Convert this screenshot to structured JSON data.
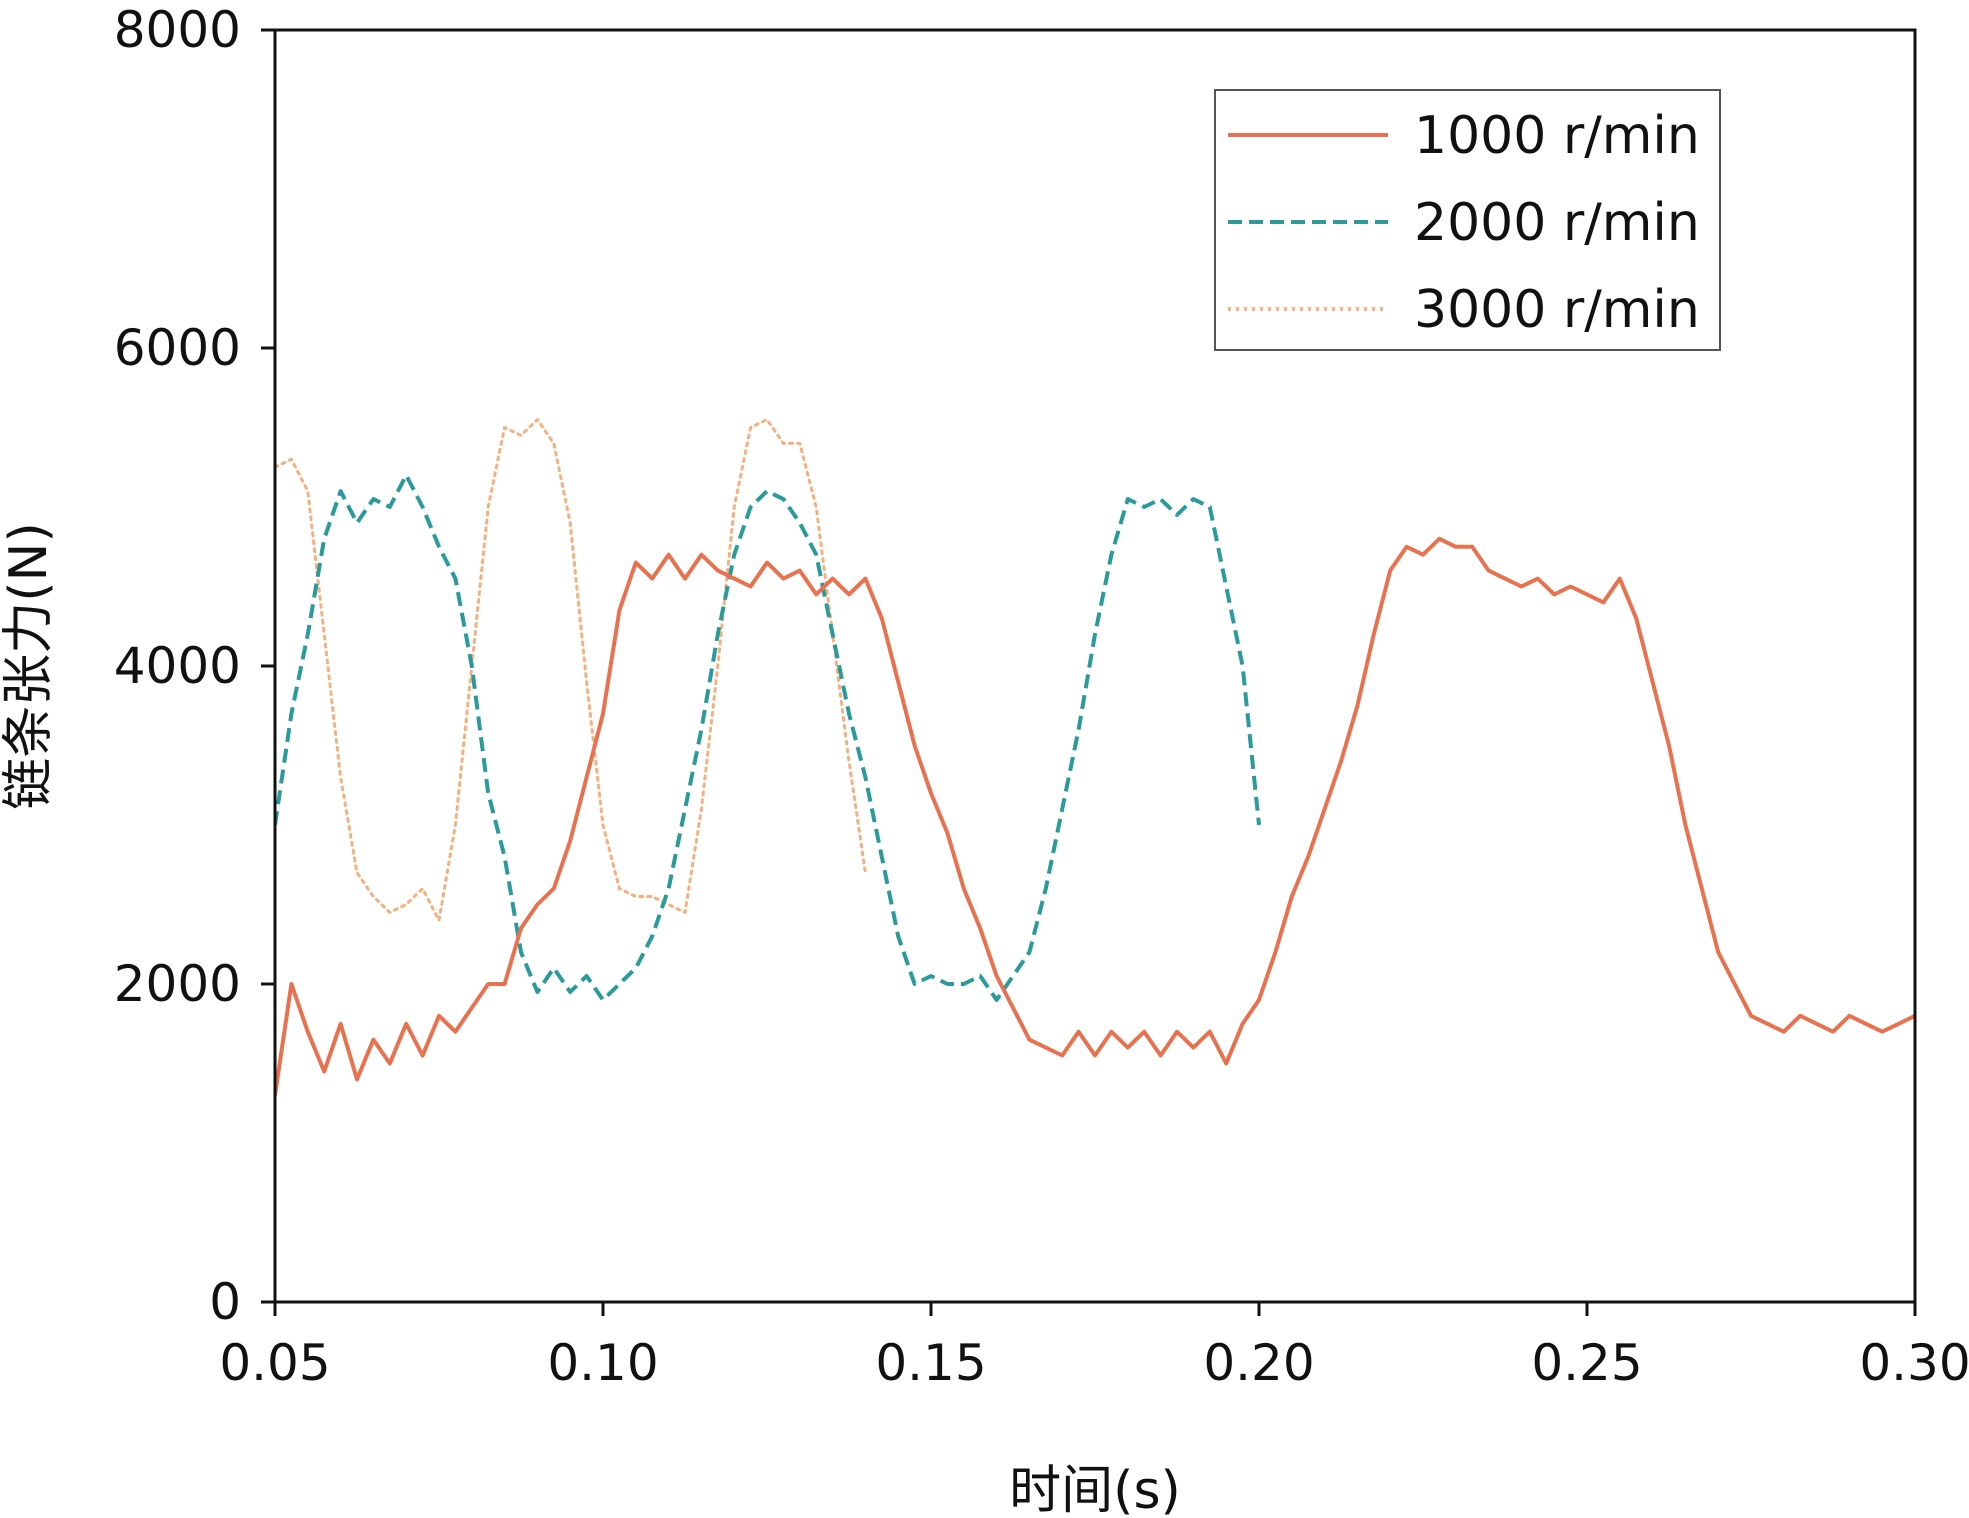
{
  "chart_data": {
    "type": "line",
    "title": "",
    "xlabel": "时间(s)",
    "ylabel": "链条张力(N)",
    "xlim": [
      0.05,
      0.3
    ],
    "ylim": [
      0,
      8000
    ],
    "xticks": [
      0.05,
      0.1,
      0.15,
      0.2,
      0.25,
      0.3
    ],
    "xtick_labels": [
      "0.05",
      "0.10",
      "0.15",
      "0.20",
      "0.25",
      "0.30"
    ],
    "yticks": [
      0,
      2000,
      4000,
      6000,
      8000
    ],
    "ytick_labels": [
      "0",
      "2000",
      "4000",
      "6000",
      "8000"
    ],
    "grid": false,
    "legend_position": "top-right",
    "series": [
      {
        "name": "1000 r/min",
        "color": "#e8724f",
        "style": "solid",
        "x": [
          0.05,
          0.0525,
          0.055,
          0.0575,
          0.06,
          0.0625,
          0.065,
          0.0675,
          0.07,
          0.0725,
          0.075,
          0.0775,
          0.08,
          0.0825,
          0.085,
          0.0875,
          0.09,
          0.0925,
          0.095,
          0.0975,
          0.1,
          0.1025,
          0.105,
          0.1075,
          0.11,
          0.1125,
          0.115,
          0.1175,
          0.12,
          0.1225,
          0.125,
          0.1275,
          0.13,
          0.1325,
          0.135,
          0.1375,
          0.14,
          0.1425,
          0.145,
          0.1475,
          0.15,
          0.1525,
          0.155,
          0.1575,
          0.16,
          0.1625,
          0.165,
          0.1675,
          0.17,
          0.1725,
          0.175,
          0.1775,
          0.18,
          0.1825,
          0.185,
          0.1875,
          0.19,
          0.1925,
          0.195,
          0.1975,
          0.2,
          0.2025,
          0.205,
          0.2075,
          0.21,
          0.2125,
          0.215,
          0.2175,
          0.22,
          0.2225,
          0.225,
          0.2275,
          0.23,
          0.2325,
          0.235,
          0.2375,
          0.24,
          0.2425,
          0.245,
          0.2475,
          0.25,
          0.2525,
          0.255,
          0.2575,
          0.26,
          0.2625,
          0.265,
          0.2675,
          0.27,
          0.2725,
          0.275,
          0.2775,
          0.28,
          0.2825,
          0.285,
          0.2875,
          0.29,
          0.2925,
          0.295,
          0.2975,
          0.3
        ],
        "values": [
          1300,
          2000,
          1700,
          1450,
          1750,
          1400,
          1650,
          1500,
          1750,
          1550,
          1800,
          1700,
          1850,
          2000,
          2000,
          2350,
          2500,
          2600,
          2900,
          3300,
          3700,
          4350,
          4650,
          4550,
          4700,
          4550,
          4700,
          4600,
          4550,
          4500,
          4650,
          4550,
          4600,
          4450,
          4550,
          4450,
          4550,
          4300,
          3900,
          3500,
          3200,
          2950,
          2600,
          2350,
          2050,
          1850,
          1650,
          1600,
          1550,
          1700,
          1550,
          1700,
          1600,
          1700,
          1550,
          1700,
          1600,
          1700,
          1500,
          1750,
          1900,
          2200,
          2550,
          2800,
          3100,
          3400,
          3750,
          4200,
          4600,
          4750,
          4700,
          4800,
          4750,
          4750,
          4600,
          4550,
          4500,
          4550,
          4450,
          4500,
          4450,
          4400,
          4550,
          4300,
          3900,
          3500,
          3000,
          2600,
          2200,
          2000,
          1800,
          1750,
          1700,
          1800,
          1750,
          1700,
          1800,
          1750,
          1700,
          1750,
          1800
        ]
      },
      {
        "name": "2000 r/min",
        "color": "#2a9a9a",
        "style": "dashed",
        "x": [
          0.05,
          0.0525,
          0.055,
          0.0575,
          0.06,
          0.0625,
          0.065,
          0.0675,
          0.07,
          0.0725,
          0.075,
          0.0775,
          0.08,
          0.0825,
          0.085,
          0.0875,
          0.09,
          0.0925,
          0.095,
          0.0975,
          0.1,
          0.1025,
          0.105,
          0.1075,
          0.11,
          0.1125,
          0.115,
          0.1175,
          0.12,
          0.1225,
          0.125,
          0.1275,
          0.13,
          0.1325,
          0.135,
          0.1375,
          0.14,
          0.1425,
          0.145,
          0.1475,
          0.15,
          0.1525,
          0.155,
          0.1575,
          0.16,
          0.1625,
          0.165,
          0.1675,
          0.17,
          0.1725,
          0.175,
          0.1775,
          0.18,
          0.1825,
          0.185,
          0.1875,
          0.19,
          0.1925,
          0.195,
          0.1975,
          0.2
        ],
        "values": [
          3000,
          3700,
          4200,
          4800,
          5100,
          4900,
          5050,
          5000,
          5200,
          5000,
          4750,
          4550,
          4000,
          3200,
          2800,
          2200,
          1950,
          2100,
          1950,
          2050,
          1900,
          2000,
          2100,
          2300,
          2600,
          3100,
          3600,
          4200,
          4700,
          5000,
          5100,
          5050,
          4900,
          4700,
          4200,
          3700,
          3300,
          2800,
          2300,
          2000,
          2050,
          2000,
          2000,
          2050,
          1900,
          2050,
          2200,
          2600,
          3100,
          3600,
          4200,
          4700,
          5050,
          5000,
          5050,
          4950,
          5050,
          5000,
          4500,
          4000,
          3000
        ]
      },
      {
        "name": "3000 r/min",
        "color": "#f5b080",
        "style": "dotted",
        "x": [
          0.05,
          0.0525,
          0.055,
          0.0575,
          0.06,
          0.0625,
          0.065,
          0.0675,
          0.07,
          0.0725,
          0.075,
          0.0775,
          0.08,
          0.0825,
          0.085,
          0.0875,
          0.09,
          0.0925,
          0.095,
          0.0975,
          0.1,
          0.1025,
          0.105,
          0.1075,
          0.11,
          0.1125,
          0.115,
          0.1175,
          0.12,
          0.1225,
          0.125,
          0.1275,
          0.13,
          0.1325,
          0.135,
          0.1375,
          0.14
        ],
        "values": [
          5250,
          5300,
          5100,
          4200,
          3300,
          2700,
          2550,
          2450,
          2500,
          2600,
          2400,
          3000,
          4000,
          5000,
          5500,
          5450,
          5550,
          5400,
          4900,
          3900,
          3000,
          2600,
          2550,
          2550,
          2500,
          2450,
          3100,
          4000,
          5000,
          5500,
          5550,
          5400,
          5400,
          5000,
          4200,
          3400,
          2700
        ]
      }
    ]
  }
}
